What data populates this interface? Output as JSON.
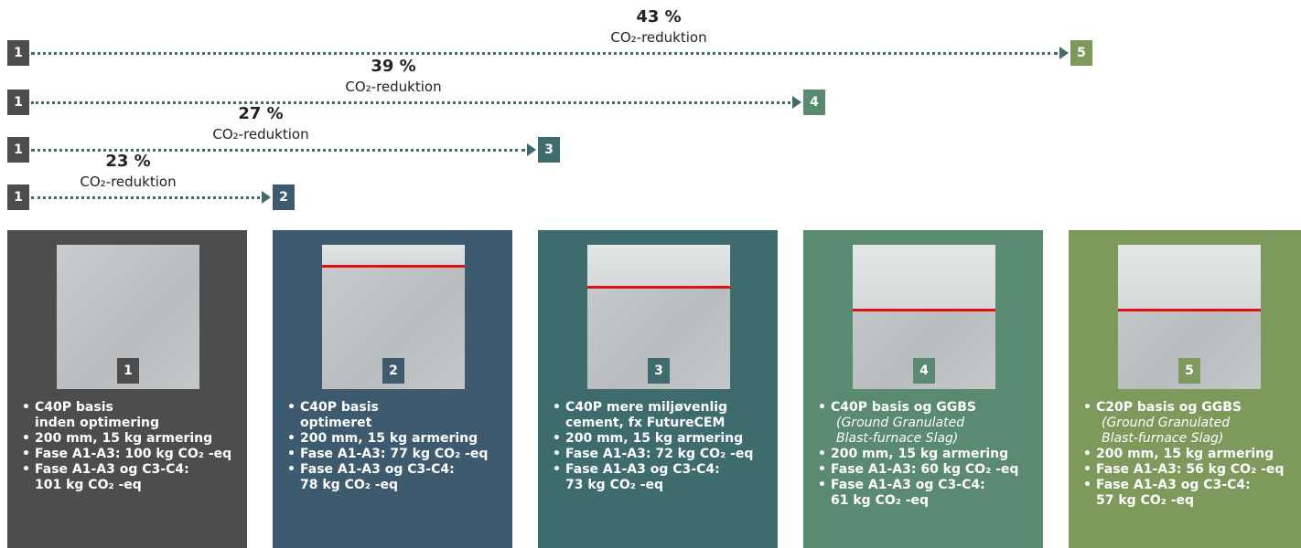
{
  "arrows": [
    {
      "start": "1",
      "end": "5",
      "percent": "43 %",
      "caption": "CO₂-reduktion"
    },
    {
      "start": "1",
      "end": "4",
      "percent": "39 %",
      "caption": "CO₂-reduktion"
    },
    {
      "start": "1",
      "end": "3",
      "percent": "27 %",
      "caption": "CO₂-reduktion"
    },
    {
      "start": "1",
      "end": "2",
      "percent": "23 %",
      "caption": "CO₂-reduktion"
    }
  ],
  "cards": [
    {
      "number": "1",
      "bullets": [
        [
          "C40P basis",
          "inden optimering"
        ],
        [
          "200 mm, 15 kg armering"
        ],
        [
          "Fase A1-A3: 100 kg CO₂ -eq"
        ],
        [
          "Fase A1-A3 og C3-C4:",
          "101 kg CO₂ -eq"
        ]
      ]
    },
    {
      "number": "2",
      "bullets": [
        [
          "C40P basis",
          "optimeret"
        ],
        [
          "200 mm, 15 kg armering"
        ],
        [
          "Fase A1-A3: 77 kg CO₂ -eq"
        ],
        [
          "Fase A1-A3 og C3-C4:",
          "78 kg CO₂ -eq"
        ]
      ]
    },
    {
      "number": "3",
      "bullets": [
        [
          "C40P mere miljøvenlig",
          "cement, fx FutureCEM"
        ],
        [
          "200 mm, 15 kg armering"
        ],
        [
          "Fase A1-A3: 72 kg CO₂ -eq"
        ],
        [
          "Fase A1-A3 og C3-C4:",
          "73 kg CO₂ -eq"
        ]
      ]
    },
    {
      "number": "4",
      "bullets": [
        [
          "C40P basis og GGBS"
        ],
        [
          "200 mm, 15 kg armering"
        ],
        [
          "Fase A1-A3: 60 kg CO₂ -eq"
        ],
        [
          "Fase A1-A3 og C3-C4:",
          "61 kg CO₂ -eq"
        ]
      ],
      "note": [
        "(Ground Granulated",
        "Blast-furnace Slag)"
      ]
    },
    {
      "number": "5",
      "bullets": [
        [
          "C20P basis og GGBS"
        ],
        [
          "200 mm, 15 kg armering"
        ],
        [
          "Fase A1-A3: 56 kg CO₂ -eq"
        ],
        [
          "Fase A1-A3 og C3-C4:",
          "57 kg CO₂ -eq"
        ]
      ],
      "note": [
        "(Ground Granulated",
        "Blast-furnace Slag)"
      ]
    }
  ]
}
